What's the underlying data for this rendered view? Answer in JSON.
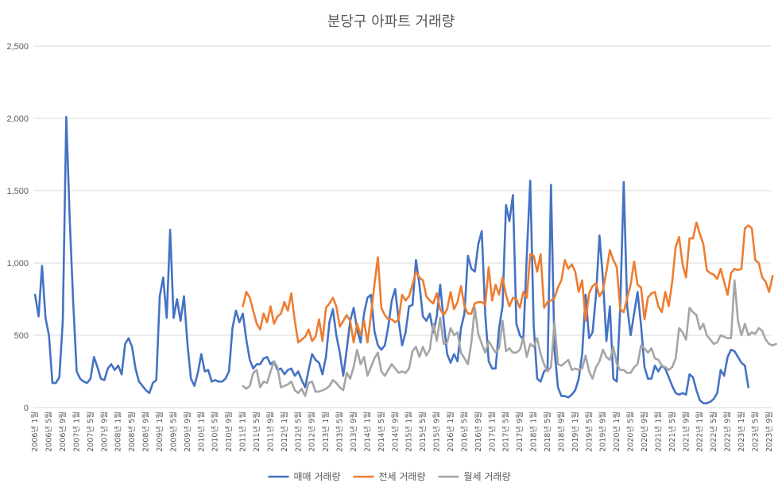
{
  "chart_data": {
    "type": "line",
    "title": "분당구 아파트 거래량",
    "xlabel": "",
    "ylabel": "",
    "ylim": [
      0,
      2500
    ],
    "yticks": [
      0,
      500,
      1000,
      1500,
      2000,
      2500
    ],
    "ytick_labels": [
      "0",
      "500",
      "1,000",
      "1,500",
      "2,000",
      "2,500"
    ],
    "grid": true,
    "legend_position": "bottom",
    "start_year": 2006,
    "start_month": 1,
    "num_points": 213,
    "tick_every": 4,
    "x_tick_format": "{y}년 {m}월",
    "series": [
      {
        "name": "매매 거래량",
        "color": "#4472C4",
        "start_index": 0,
        "values": [
          780,
          630,
          980,
          620,
          500,
          170,
          170,
          210,
          600,
          2010,
          1300,
          730,
          250,
          200,
          180,
          170,
          200,
          350,
          280,
          200,
          190,
          270,
          300,
          260,
          290,
          230,
          440,
          480,
          420,
          270,
          180,
          150,
          120,
          100,
          170,
          190,
          770,
          900,
          620,
          1230,
          620,
          750,
          600,
          770,
          440,
          200,
          150,
          240,
          370,
          250,
          260,
          180,
          190,
          180,
          180,
          200,
          250,
          550,
          670,
          590,
          650,
          470,
          330,
          270,
          300,
          300,
          340,
          350,
          300,
          320,
          260,
          270,
          230,
          260,
          270,
          220,
          250,
          190,
          140,
          260,
          370,
          330,
          310,
          230,
          350,
          590,
          680,
          500,
          380,
          220,
          400,
          600,
          690,
          540,
          450,
          650,
          760,
          780,
          530,
          430,
          400,
          430,
          560,
          740,
          820,
          600,
          430,
          520,
          700,
          710,
          1020,
          850,
          630,
          600,
          650,
          520,
          630,
          850,
          600,
          370,
          310,
          370,
          320,
          550,
          650,
          1050,
          960,
          940,
          1130,
          1220,
          650,
          320,
          270,
          270,
          550,
          700,
          1400,
          1290,
          1470,
          580,
          500,
          470,
          1050,
          1570,
          570,
          200,
          180,
          250,
          270,
          1540,
          400,
          140,
          80,
          80,
          70,
          90,
          120,
          200,
          370,
          780,
          480,
          520,
          780,
          1190,
          890,
          460,
          700,
          200,
          180,
          700,
          1560,
          700,
          500,
          650,
          800,
          570,
          280,
          200,
          200,
          290,
          250,
          290,
          270,
          210,
          150,
          100,
          90,
          100,
          90,
          230,
          210,
          120,
          50,
          30,
          30,
          40,
          60,
          100,
          260,
          220,
          350,
          400,
          390,
          350,
          310,
          290,
          140
        ]
      },
      {
        "name": "전세 거래량",
        "color": "#ED7D31",
        "start_index": 60,
        "values": [
          700,
          800,
          760,
          670,
          580,
          540,
          650,
          590,
          700,
          580,
          630,
          650,
          730,
          670,
          790,
          600,
          450,
          470,
          490,
          540,
          460,
          490,
          610,
          460,
          690,
          720,
          760,
          700,
          560,
          600,
          640,
          600,
          450,
          580,
          500,
          600,
          450,
          640,
          850,
          1040,
          690,
          640,
          610,
          610,
          590,
          610,
          780,
          740,
          770,
          850,
          940,
          900,
          880,
          770,
          740,
          720,
          790,
          680,
          640,
          680,
          800,
          680,
          730,
          840,
          700,
          650,
          650,
          720,
          730,
          730,
          710,
          970,
          740,
          850,
          780,
          900,
          780,
          700,
          760,
          750,
          690,
          800,
          760,
          1060,
          1050,
          940,
          1060,
          690,
          730,
          740,
          760,
          830,
          880,
          1020,
          960,
          990,
          940,
          800,
          880,
          600,
          790,
          840,
          860,
          770,
          810,
          940,
          1090,
          1020,
          970,
          680,
          660,
          760,
          850,
          1010,
          850,
          830,
          610,
          760,
          790,
          800,
          700,
          660,
          800,
          700,
          870,
          1110,
          1180,
          990,
          900,
          1170,
          1170,
          1280,
          1200,
          1130,
          950,
          930,
          920,
          890,
          960,
          870,
          780,
          930,
          960,
          950,
          960,
          1240,
          1260,
          1240,
          1020,
          1000,
          900,
          870,
          800,
          910
        ]
      },
      {
        "name": "월세 거래량",
        "color": "#A5A5A5",
        "start_index": 60,
        "values": [
          150,
          130,
          150,
          240,
          260,
          140,
          180,
          170,
          250,
          320,
          280,
          140,
          150,
          160,
          180,
          120,
          100,
          130,
          80,
          170,
          180,
          110,
          110,
          120,
          130,
          150,
          190,
          170,
          140,
          120,
          240,
          200,
          280,
          400,
          300,
          350,
          220,
          280,
          340,
          380,
          250,
          220,
          260,
          300,
          270,
          240,
          250,
          240,
          270,
          390,
          420,
          350,
          420,
          360,
          400,
          580,
          460,
          620,
          440,
          450,
          550,
          500,
          520,
          380,
          340,
          300,
          450,
          690,
          510,
          440,
          380,
          460,
          420,
          380,
          410,
          600,
          390,
          410,
          380,
          380,
          400,
          480,
          350,
          440,
          420,
          480,
          370,
          300,
          250,
          280,
          590,
          300,
          290,
          310,
          330,
          260,
          270,
          260,
          270,
          360,
          250,
          200,
          280,
          320,
          400,
          350,
          330,
          420,
          300,
          260,
          260,
          240,
          240,
          280,
          300,
          430,
          410,
          380,
          410,
          340,
          330,
          290,
          280,
          260,
          280,
          340,
          550,
          520,
          470,
          690,
          660,
          640,
          540,
          580,
          500,
          470,
          440,
          450,
          500,
          490,
          480,
          480,
          880,
          600,
          500,
          580,
          500,
          520,
          510,
          550,
          530,
          470,
          440,
          430,
          440
        ]
      }
    ]
  }
}
